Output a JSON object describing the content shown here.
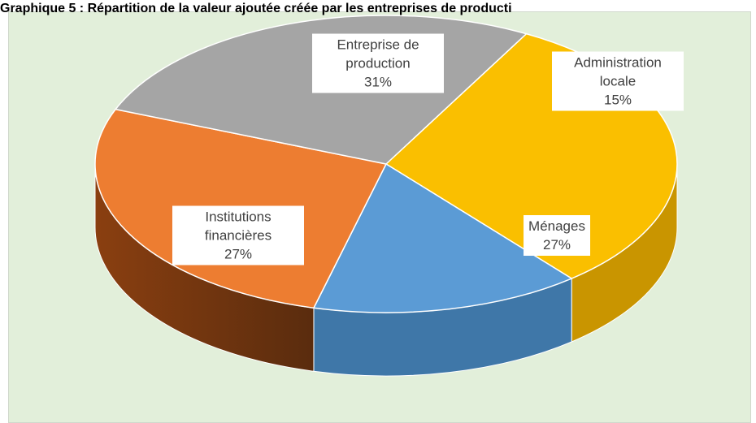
{
  "chart_data": {
    "type": "pie",
    "title": "Graphique 5 : Répartition de la valeur ajoutée créée par les entreprises de producti",
    "categories": [
      "Entreprise de production",
      "Administration locale",
      "Ménages",
      "Institutions financières"
    ],
    "values": [
      31,
      15,
      27,
      27
    ],
    "value_labels": [
      "31%",
      "15%",
      "27%",
      "27%"
    ],
    "colors": [
      "#fabf00",
      "#5b9bd5",
      "#ed7d31",
      "#a5a5a5"
    ]
  }
}
